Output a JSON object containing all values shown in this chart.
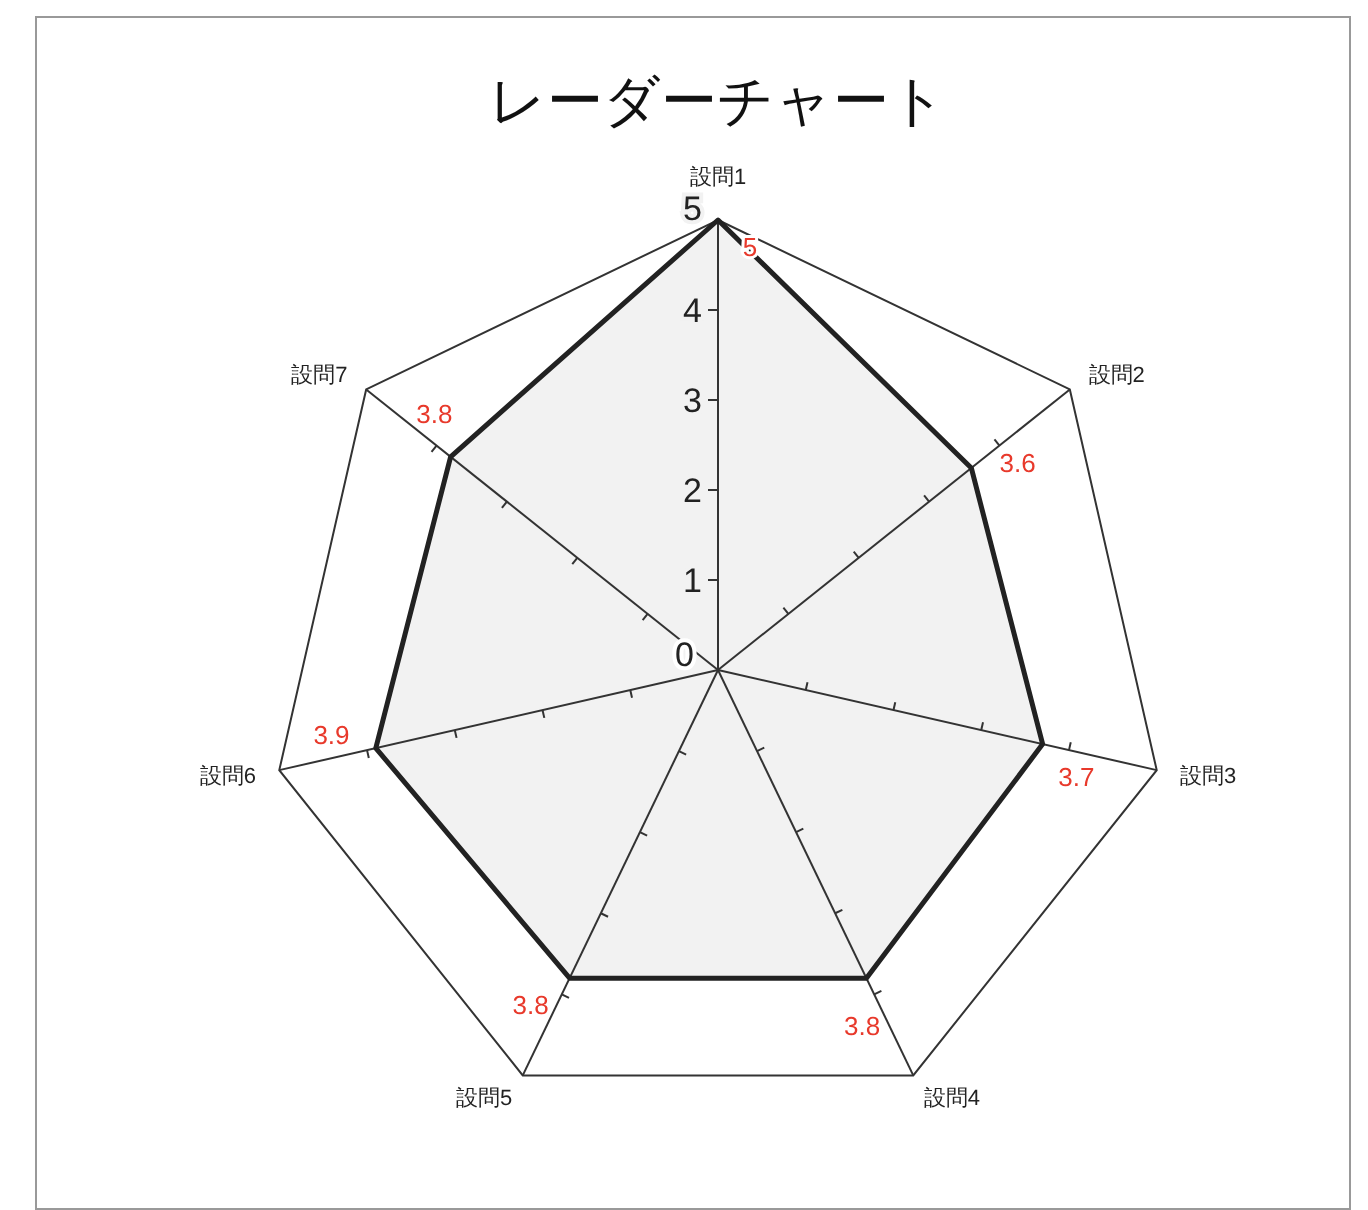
{
  "chart_data": {
    "type": "radar",
    "title": "レーダーチャート",
    "categories": [
      "設問1",
      "設問2",
      "設問3",
      "設問4",
      "設問5",
      "設問6",
      "設問7"
    ],
    "series": [
      {
        "color": "#222222",
        "values": [
          5,
          3.6,
          3.7,
          3.8,
          3.8,
          3.9,
          3.8
        ]
      }
    ],
    "ylim": [
      0,
      5
    ],
    "yticks": [
      0,
      1,
      2,
      3,
      4,
      5
    ],
    "data_labels": true,
    "grid": false
  }
}
